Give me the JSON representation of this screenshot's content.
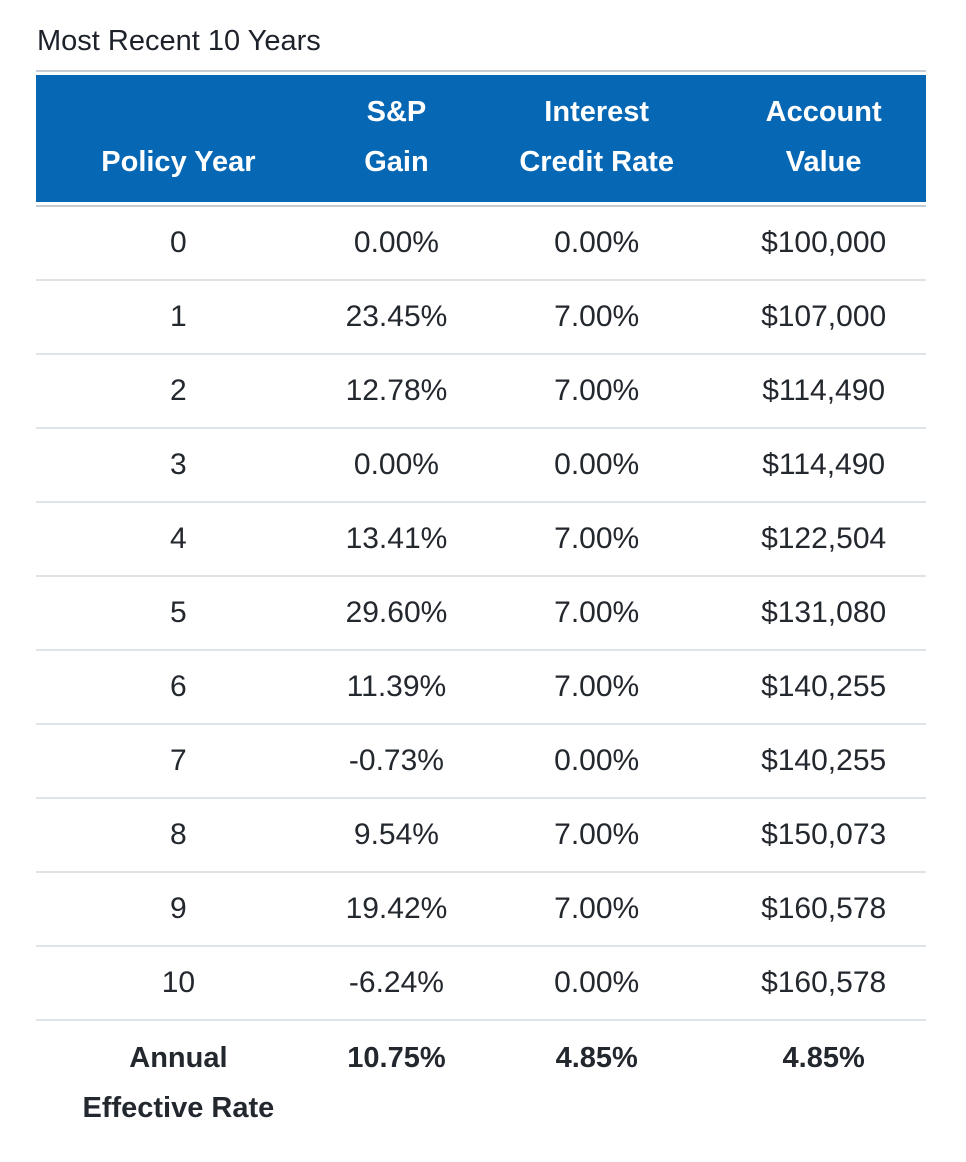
{
  "title": "Most Recent 10 Years",
  "colors": {
    "header_bg": "#0667B4",
    "header_text": "#FFFFFF",
    "body_text": "#23272E",
    "row_separator": "#DEE3E8",
    "header_rule": "#C7CDD4"
  },
  "chart_data": {
    "type": "table",
    "title": "Most Recent 10 Years",
    "columns": [
      "Policy Year",
      "S&P Gain",
      "Interest Credit Rate",
      "Account Value"
    ],
    "header_lines": [
      [
        "Policy Year"
      ],
      [
        "S&P",
        "Gain"
      ],
      [
        "Interest",
        "Credit Rate"
      ],
      [
        "Account",
        "Value"
      ]
    ],
    "rows": [
      [
        "0",
        "0.00%",
        "0.00%",
        "$100,000"
      ],
      [
        "1",
        "23.45%",
        "7.00%",
        "$107,000"
      ],
      [
        "2",
        "12.78%",
        "7.00%",
        "$114,490"
      ],
      [
        "3",
        "0.00%",
        "0.00%",
        "$114,490"
      ],
      [
        "4",
        "13.41%",
        "7.00%",
        "$122,504"
      ],
      [
        "5",
        "29.60%",
        "7.00%",
        "$131,080"
      ],
      [
        "6",
        "11.39%",
        "7.00%",
        "$140,255"
      ],
      [
        "7",
        "-0.73%",
        "0.00%",
        "$140,255"
      ],
      [
        "8",
        "9.54%",
        "7.00%",
        "$150,073"
      ],
      [
        "9",
        "19.42%",
        "7.00%",
        "$160,578"
      ],
      [
        "10",
        "-6.24%",
        "0.00%",
        "$160,578"
      ]
    ],
    "footer": {
      "label": "Annual Effective Rate",
      "label_lines": [
        "Annual",
        "Effective Rate"
      ],
      "values": [
        "10.75%",
        "4.85%",
        "4.85%"
      ]
    }
  }
}
